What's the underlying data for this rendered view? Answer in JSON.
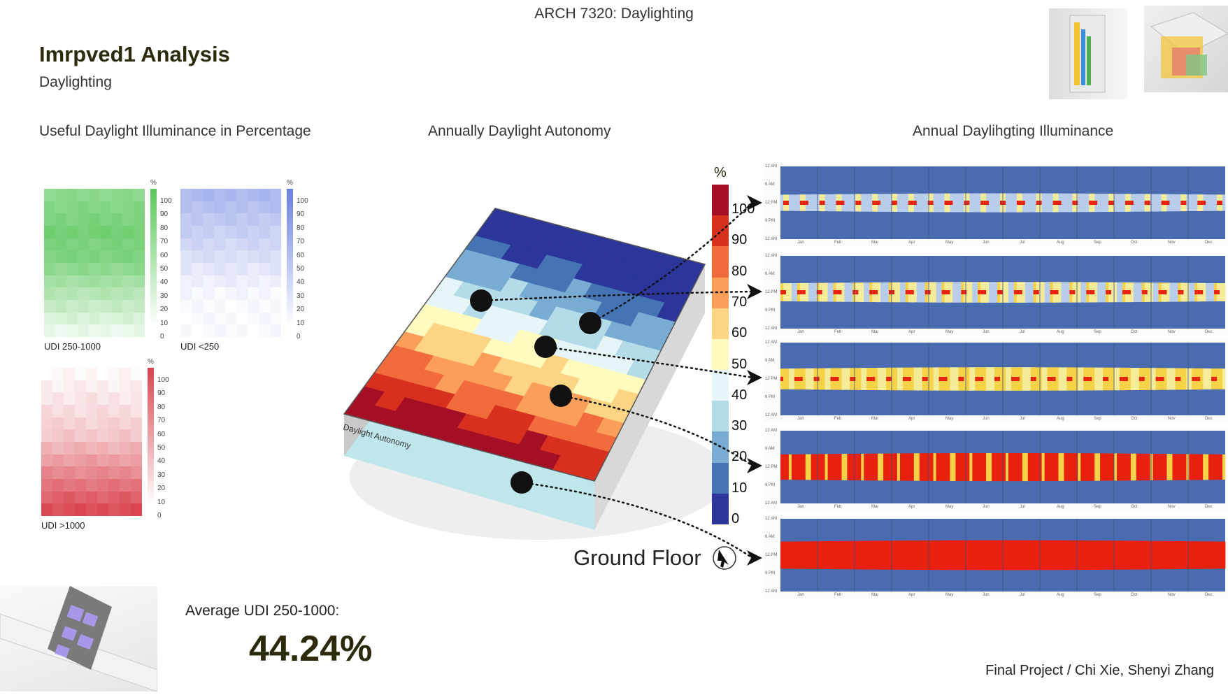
{
  "header": {
    "course": "ARCH 7320: Daylighting",
    "title": "Imrpved1 Analysis",
    "subtitle": "Daylighting"
  },
  "sections": {
    "udi": "Useful Daylight Illuminance in Percentage",
    "da": "Annually Daylight Autonomy",
    "adi": "Annual Daylihgting Illuminance"
  },
  "udi_maps": [
    {
      "label": "UDI 250-1000",
      "unit": "%",
      "color": "#5cc75c"
    },
    {
      "label": "UDI <250",
      "unit": "%",
      "color": "#6a7fe0"
    },
    {
      "label": "UDI >1000",
      "unit": "%",
      "color": "#d9444f"
    }
  ],
  "udi_ticks": [
    "100",
    "90",
    "80",
    "70",
    "60",
    "50",
    "40",
    "30",
    "20",
    "10",
    "0"
  ],
  "da_scale": {
    "unit": "%",
    "labels": [
      "100",
      "90",
      "80",
      "70",
      "60",
      "50",
      "40",
      "30",
      "20",
      "10",
      "0"
    ],
    "colors": [
      "#a50f26",
      "#d7301f",
      "#f16b3c",
      "#fb9e5a",
      "#fdd384",
      "#fffbbf",
      "#e6f5f8",
      "#b3dbe8",
      "#79acd3",
      "#4474b4",
      "#2b359a"
    ]
  },
  "model": {
    "label": "Daylight Autonomy",
    "floor": "Ground Floor"
  },
  "heatmaps": {
    "months": [
      "Jan",
      "Feb",
      "Mar",
      "Apr",
      "May",
      "Jun",
      "Jul",
      "Aug",
      "Sep",
      "Oct",
      "Nov",
      "Dec"
    ],
    "hours": [
      "12 AM",
      "6 AM",
      "12 PM",
      "6 PM",
      "12 AM"
    ],
    "rows": [
      {
        "intensity": 0.35
      },
      {
        "intensity": 0.45
      },
      {
        "intensity": 0.6
      },
      {
        "intensity": 0.85
      },
      {
        "intensity": 0.95
      }
    ]
  },
  "summary": {
    "avg_label": "Average UDI 250-1000:",
    "avg_value": "44.24%"
  },
  "credit": "Final Project / Chi Xie, Shenyi Zhang"
}
